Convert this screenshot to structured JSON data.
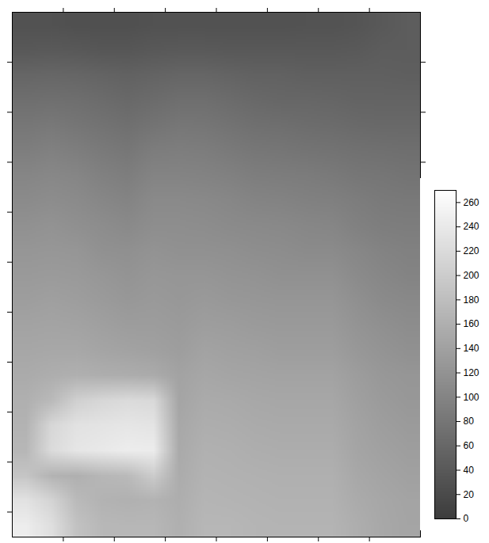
{
  "chart_data": {
    "type": "heatmap",
    "xlim": [
      0,
      8
    ],
    "ylim": [
      0,
      10.5
    ],
    "xticks": [
      1,
      2,
      3,
      4,
      5,
      6,
      7
    ],
    "yticks": [
      1,
      2,
      3,
      4,
      5,
      6,
      7,
      8,
      9,
      10
    ],
    "tick_labels": false,
    "color": "gray",
    "cells": {
      "width": 16,
      "height": 21,
      "values": [
        [
          30,
          30,
          28,
          28,
          28,
          30,
          30,
          30,
          30,
          30,
          30,
          32,
          32,
          35,
          40,
          45
        ],
        [
          40,
          42,
          40,
          38,
          38,
          40,
          42,
          42,
          40,
          40,
          40,
          40,
          40,
          42,
          45,
          45
        ],
        [
          58,
          60,
          58,
          55,
          52,
          55,
          58,
          58,
          55,
          52,
          52,
          50,
          50,
          50,
          50,
          48
        ],
        [
          70,
          72,
          70,
          66,
          62,
          66,
          70,
          70,
          66,
          62,
          60,
          60,
          58,
          56,
          56,
          55
        ],
        [
          82,
          84,
          80,
          76,
          72,
          78,
          82,
          80,
          76,
          72,
          70,
          68,
          66,
          64,
          62,
          62
        ],
        [
          92,
          95,
          92,
          86,
          82,
          90,
          92,
          90,
          86,
          82,
          80,
          78,
          76,
          74,
          72,
          70
        ],
        [
          102,
          105,
          102,
          96,
          92,
          100,
          100,
          98,
          96,
          92,
          90,
          88,
          86,
          82,
          80,
          78
        ],
        [
          110,
          112,
          110,
          104,
          100,
          108,
          108,
          106,
          104,
          100,
          98,
          96,
          94,
          90,
          86,
          84
        ],
        [
          118,
          120,
          116,
          112,
          108,
          114,
          114,
          112,
          110,
          108,
          106,
          104,
          102,
          96,
          92,
          90
        ],
        [
          124,
          126,
          124,
          118,
          116,
          120,
          118,
          118,
          116,
          114,
          112,
          110,
          110,
          104,
          98,
          96
        ],
        [
          130,
          132,
          130,
          126,
          122,
          126,
          124,
          124,
          122,
          120,
          118,
          118,
          118,
          110,
          104,
          100
        ],
        [
          136,
          138,
          136,
          132,
          128,
          130,
          128,
          130,
          128,
          126,
          124,
          124,
          124,
          116,
          110,
          106
        ],
        [
          142,
          144,
          142,
          138,
          134,
          134,
          132,
          136,
          134,
          132,
          130,
          130,
          130,
          122,
          116,
          112
        ],
        [
          148,
          150,
          150,
          146,
          142,
          140,
          136,
          142,
          140,
          138,
          136,
          136,
          136,
          128,
          122,
          118
        ],
        [
          154,
          158,
          160,
          158,
          156,
          154,
          142,
          148,
          146,
          144,
          142,
          142,
          142,
          134,
          128,
          124
        ],
        [
          160,
          175,
          205,
          215,
          220,
          218,
          146,
          154,
          152,
          150,
          148,
          148,
          148,
          138,
          132,
          128
        ],
        [
          165,
          215,
          230,
          232,
          235,
          232,
          150,
          158,
          156,
          154,
          152,
          152,
          152,
          142,
          136,
          132
        ],
        [
          170,
          220,
          235,
          240,
          245,
          244,
          152,
          162,
          160,
          158,
          156,
          156,
          156,
          146,
          140,
          136
        ],
        [
          190,
          165,
          160,
          170,
          175,
          200,
          155,
          165,
          164,
          162,
          160,
          160,
          160,
          150,
          144,
          140
        ],
        [
          230,
          210,
          175,
          165,
          162,
          165,
          158,
          168,
          166,
          165,
          164,
          164,
          164,
          154,
          148,
          144
        ],
        [
          245,
          225,
          185,
          172,
          170,
          170,
          160,
          170,
          170,
          168,
          166,
          166,
          166,
          158,
          150,
          146
        ]
      ]
    },
    "colorbar": {
      "range": [
        0,
        270
      ],
      "ticks": [
        0,
        20,
        40,
        60,
        80,
        100,
        120,
        140,
        160,
        180,
        200,
        220,
        240,
        260
      ]
    }
  }
}
